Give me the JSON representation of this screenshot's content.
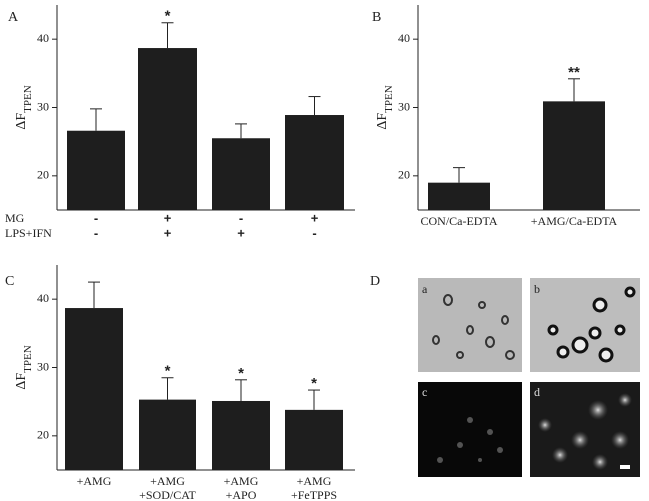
{
  "chart_data": [
    {
      "type": "bar",
      "panel_label": "A",
      "ylabel": "ΔF",
      "ylabel_subscript": "TPEN",
      "values": [
        26.6,
        38.7,
        25.5,
        28.9
      ],
      "errors": [
        3.2,
        3.7,
        2.1,
        2.7
      ],
      "color": "#1e1e1e",
      "ylim": [
        15,
        45
      ],
      "yticks": [
        20,
        30,
        40
      ],
      "annotations": [
        {
          "index": 1,
          "text": "*"
        }
      ],
      "condition_rows": [
        {
          "name": "MG",
          "values": [
            "-",
            "+",
            "-",
            "+"
          ]
        },
        {
          "name": "LPS+IFN",
          "values": [
            "-",
            "+",
            "+",
            "-"
          ]
        }
      ]
    },
    {
      "type": "bar",
      "panel_label": "B",
      "ylabel": "ΔF",
      "ylabel_subscript": "TPEN",
      "categories": [
        [
          "CON/Ca-EDTA"
        ],
        [
          "+AMG/Ca-EDTA"
        ]
      ],
      "values": [
        19.0,
        30.9
      ],
      "errors": [
        2.2,
        3.3
      ],
      "color": "#1e1e1e",
      "ylim": [
        15,
        45
      ],
      "yticks": [
        20,
        30,
        40
      ],
      "annotations": [
        {
          "index": 1,
          "text": "**"
        }
      ]
    },
    {
      "type": "bar",
      "panel_label": "C",
      "ylabel": "ΔF",
      "ylabel_subscript": "TPEN",
      "categories": [
        [
          "+AMG"
        ],
        [
          "+AMG",
          "+SOD/CAT"
        ],
        [
          "+AMG",
          "+APO"
        ],
        [
          "+AMG",
          "+FeTPPS"
        ]
      ],
      "values": [
        38.7,
        25.3,
        25.1,
        23.8
      ],
      "errors": [
        3.8,
        3.2,
        3.1,
        2.9
      ],
      "color": "#1e1e1e",
      "ylim": [
        15,
        45
      ],
      "yticks": [
        20,
        30,
        40
      ],
      "annotations": [
        {
          "index": 1,
          "text": "*"
        },
        {
          "index": 2,
          "text": "*"
        },
        {
          "index": 3,
          "text": "*"
        }
      ]
    }
  ],
  "panel_d": {
    "label": "D",
    "images": [
      "a",
      "b",
      "c",
      "d"
    ]
  }
}
